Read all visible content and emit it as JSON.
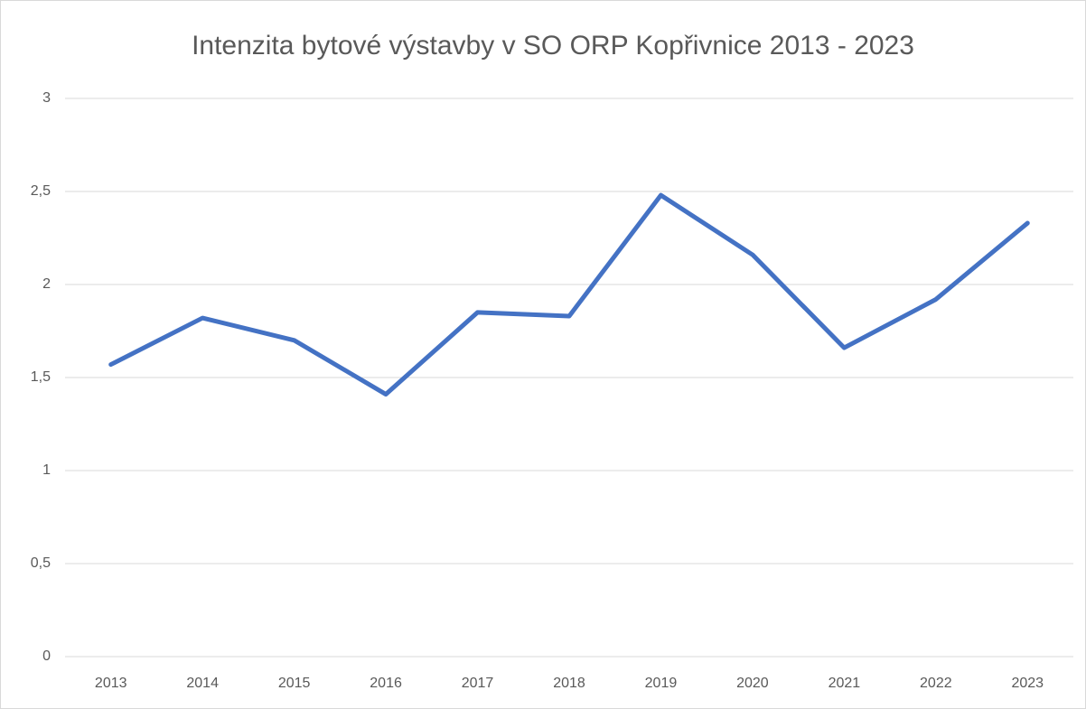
{
  "chart_data": {
    "type": "line",
    "title": "Intenzita bytové výstavby v SO ORP Kopřivnice 2013 - 2023",
    "categories": [
      "2013",
      "2014",
      "2015",
      "2016",
      "2017",
      "2018",
      "2019",
      "2020",
      "2021",
      "2022",
      "2023"
    ],
    "series": [
      {
        "name": "Intenzita bytové výstavby",
        "color": "#4472c4",
        "values": [
          1.57,
          1.82,
          1.7,
          1.41,
          1.85,
          1.83,
          2.48,
          2.16,
          1.66,
          1.92,
          2.33
        ]
      }
    ],
    "ylim": [
      0,
      3
    ],
    "yticks": [
      0,
      {
        "value": 0.5,
        "label": "0,5"
      },
      1,
      {
        "value": 1.5,
        "label": "1,5"
      },
      2,
      {
        "value": 2.5,
        "label": "2,5"
      },
      3
    ],
    "grid": true
  }
}
